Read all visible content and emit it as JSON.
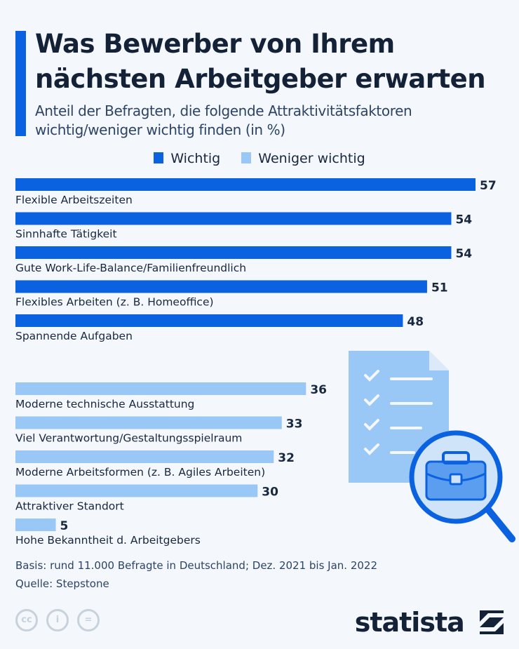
{
  "header": {
    "title_line1": "Was Bewerber von Ihrem",
    "title_line2": "nächsten Arbeitgeber erwarten",
    "subtitle_line1": "Anteil der Befragten, die folgende Attraktivitätsfaktoren",
    "subtitle_line2": "wichtig/weniger wichtig finden (in %)"
  },
  "chart_data": {
    "type": "bar",
    "orientation": "horizontal",
    "legend_position": "top",
    "grid": false,
    "xlim": [
      0,
      57
    ],
    "series": [
      {
        "name": "Wichtig",
        "color": "#0b62e0",
        "categories": [
          "Flexible Arbeitszeiten",
          "Sinnhafte Tätigkeit",
          "Gute Work-Life-Balance/Familienfreundlich",
          "Flexibles Arbeiten (z. B. Homeoffice)",
          "Spannende Aufgaben"
        ],
        "values": [
          57,
          54,
          54,
          51,
          48
        ]
      },
      {
        "name": "Weniger wichtig",
        "color": "#99c8f6",
        "categories": [
          "Moderne technische Ausstattung",
          "Viel Verantwortung/Gestaltungsspielraum",
          "Moderne Arbeitsformen (z. B. Agiles Arbeiten)",
          "Attraktiver Standort",
          "Hohe Bekanntheit d. Arbeitgebers"
        ],
        "values": [
          36,
          33,
          32,
          30,
          5
        ]
      }
    ]
  },
  "footer": {
    "basis": "Basis: rund 11.000 Befragte in Deutschland; Dez. 2021 bis Jan. 2022",
    "source": "Quelle: Stepstone",
    "logo": "statista"
  }
}
